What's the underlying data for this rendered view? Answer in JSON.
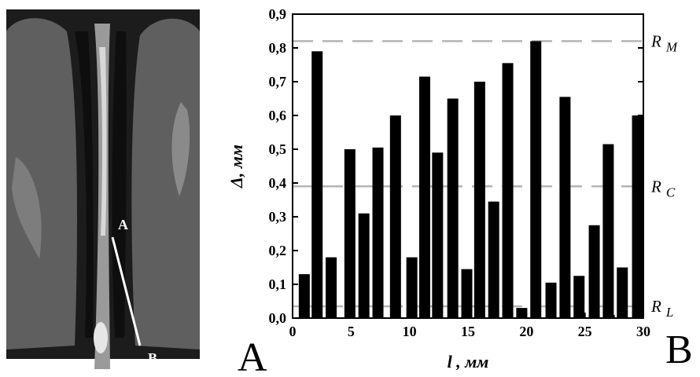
{
  "ct_image": {
    "label_a": "A",
    "label_b": "B"
  },
  "panel_labels": {
    "left": "A",
    "right": "B"
  },
  "reference_lines": [
    {
      "label": "R",
      "subscript": "M",
      "value": 0.82
    },
    {
      "label": "R",
      "subscript": "C",
      "value": 0.39
    },
    {
      "label": "R",
      "subscript": "L",
      "value": 0.035
    }
  ],
  "colors": {
    "bar": "#000000",
    "ref_line": "#b4b4b4",
    "ct_background": "#1b1b1b"
  },
  "chart_data": {
    "type": "bar",
    "title": "",
    "xlabel": "l , мм",
    "ylabel": "Δ, мм",
    "xlim": [
      0,
      30
    ],
    "ylim": [
      0,
      0.9
    ],
    "xticks": [
      "0",
      "5",
      "10",
      "15",
      "20",
      "25",
      "30"
    ],
    "yticks": [
      "0,0",
      "0,1",
      "0,2",
      "0,3",
      "0,4",
      "0,5",
      "0,6",
      "0,7",
      "0,8",
      "0,9"
    ],
    "x": [
      1,
      2.1,
      3.3,
      4.9,
      6.1,
      7.3,
      8.8,
      10.2,
      11.3,
      12.4,
      13.7,
      14.9,
      16,
      17.2,
      18.4,
      19.6,
      20.8,
      22.1,
      23.3,
      24.5,
      25.8,
      27,
      28.2,
      29.5
    ],
    "values": [
      0.13,
      0.79,
      0.18,
      0.5,
      0.31,
      0.505,
      0.6,
      0.18,
      0.715,
      0.49,
      0.65,
      0.145,
      0.7,
      0.345,
      0.755,
      0.03,
      0.82,
      0.105,
      0.655,
      0.125,
      0.275,
      0.515,
      0.15,
      0.6
    ],
    "grid": false,
    "legend": "none"
  }
}
